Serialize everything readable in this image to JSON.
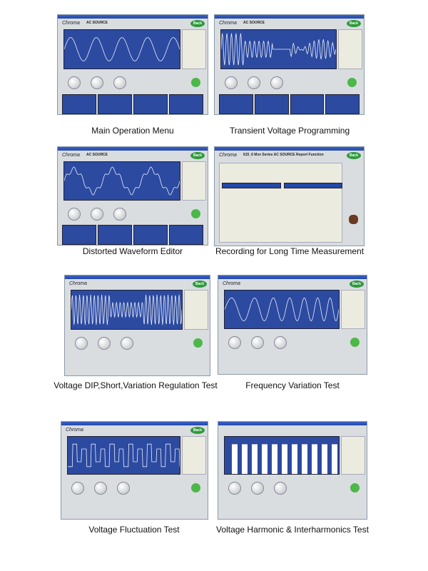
{
  "screens": [
    {
      "caption": "Main Operation Menu",
      "logo": "Chroma",
      "header": "AC SOURCE",
      "back": "Back",
      "wave": "sine"
    },
    {
      "caption": "Transient Voltage Programming",
      "logo": "Chroma",
      "header": "AC SOURCE",
      "back": "Back",
      "wave": "burst"
    },
    {
      "caption": "Distorted Waveform Editor",
      "logo": "Chroma",
      "header": "AC SOURCE",
      "back": "Back",
      "wave": "distorted"
    },
    {
      "caption": "Recording for Long Time Measurement",
      "logo": "Chroma",
      "header": "615_6 Mxx Series AC SOURCE Report Function",
      "back": "Back",
      "wave": "report"
    },
    {
      "caption": "Voltage DIP,Short,Variation Regulation Test",
      "logo": "Chroma",
      "header": "",
      "back": "Back",
      "wave": "dip"
    },
    {
      "caption": "Frequency Variation Test",
      "logo": "Chroma",
      "header": "",
      "back": "Back",
      "wave": "freq"
    },
    {
      "caption": "Voltage Fluctuation Test",
      "logo": "Chroma",
      "header": "",
      "back": "Back",
      "wave": "fluct"
    },
    {
      "caption": "Voltage Harmonic & Interharmonics Test",
      "logo": "",
      "header": "",
      "back": "",
      "wave": "harmonic"
    }
  ],
  "colors": {
    "plot": "#2c4aa0",
    "window": "#d9dde0",
    "titlebar": "#2448a8",
    "back": "#2f9a3c"
  }
}
